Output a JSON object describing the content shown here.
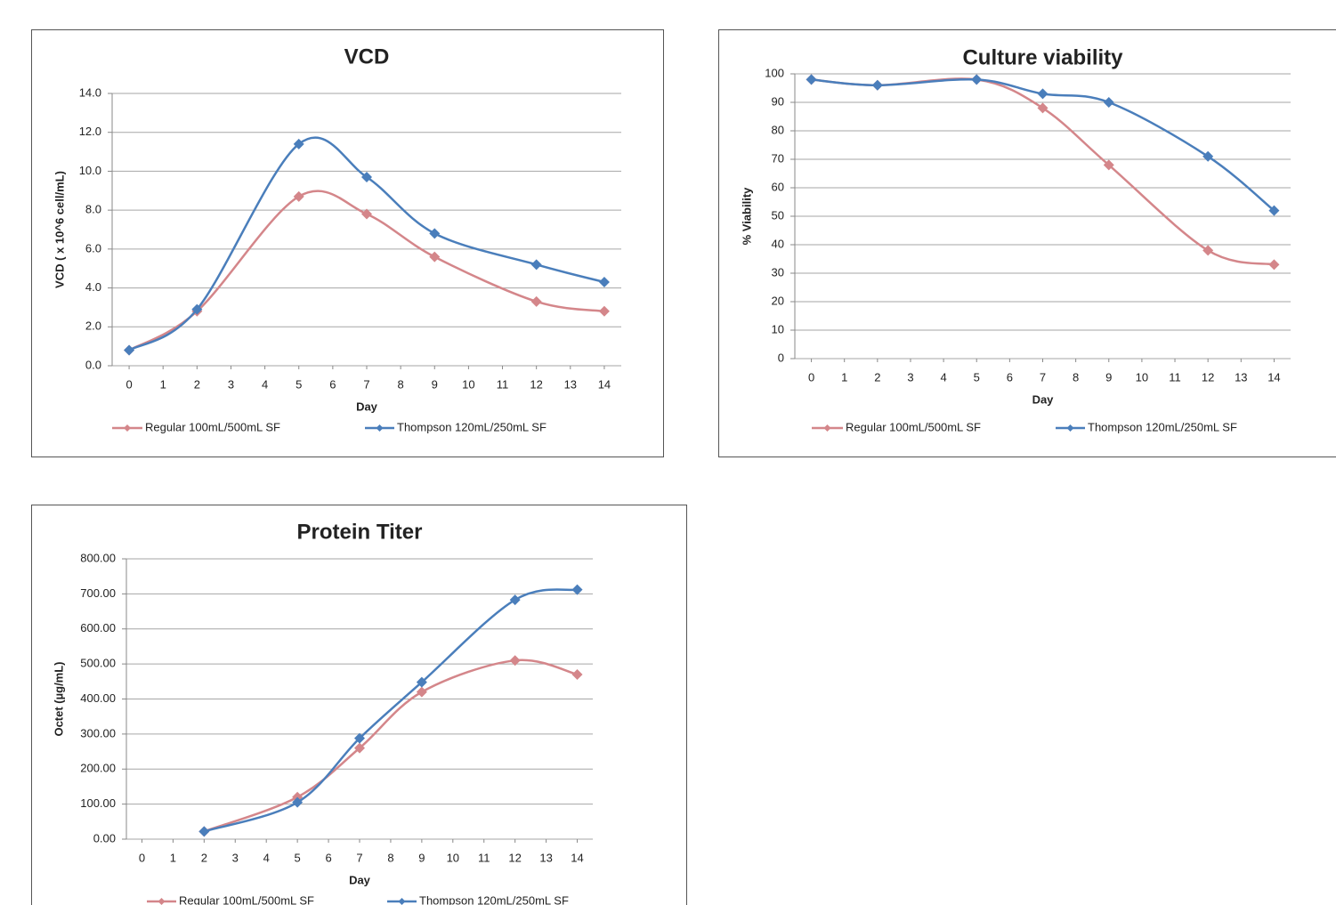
{
  "chart_data": [
    {
      "type": "line",
      "title": "VCD",
      "xlabel": "Day",
      "ylabel": "VCD ( x 10^6 cell/mL)",
      "x": [
        0,
        2,
        5,
        7,
        9,
        12,
        14
      ],
      "xlim": [
        -0.5,
        14.5
      ],
      "xticks": [
        0,
        1,
        2,
        3,
        4,
        5,
        6,
        7,
        8,
        9,
        10,
        11,
        12,
        13,
        14
      ],
      "ylim": [
        0,
        14
      ],
      "yticks": [
        {
          "value": 0,
          "label": "0.0"
        },
        {
          "value": 2,
          "label": "2.0"
        },
        {
          "value": 4,
          "label": "4.0"
        },
        {
          "value": 6,
          "label": "6.0"
        },
        {
          "value": 8,
          "label": "8.0"
        },
        {
          "value": 10,
          "label": "10.0"
        },
        {
          "value": 12,
          "label": "12.0"
        },
        {
          "value": 14,
          "label": "14.0"
        }
      ],
      "grid": true,
      "legend": "bottom",
      "series": [
        {
          "name": "Regular 100mL/500mL SF",
          "color": "#d4868a",
          "values": [
            0.8,
            2.8,
            8.7,
            7.8,
            5.6,
            3.3,
            2.8
          ]
        },
        {
          "name": "Thompson  120mL/250mL SF",
          "color": "#4a7ebb",
          "values": [
            0.8,
            2.9,
            11.4,
            9.7,
            6.8,
            5.2,
            4.3
          ]
        }
      ]
    },
    {
      "type": "line",
      "title": "Culture viability",
      "xlabel": "Day",
      "ylabel": "% Viability",
      "x": [
        0,
        2,
        5,
        7,
        9,
        12,
        14
      ],
      "xlim": [
        -0.5,
        14.5
      ],
      "xticks": [
        0,
        1,
        2,
        3,
        4,
        5,
        6,
        7,
        8,
        9,
        10,
        11,
        12,
        13,
        14
      ],
      "ylim": [
        0,
        100
      ],
      "yticks": [
        0,
        10,
        20,
        30,
        40,
        50,
        60,
        70,
        80,
        90,
        100
      ],
      "grid": true,
      "legend": "bottom",
      "series": [
        {
          "name": "Regular 100mL/500mL SF",
          "color": "#d4868a",
          "values": [
            98,
            96,
            98,
            88,
            68,
            38,
            33
          ]
        },
        {
          "name": "Thompson  120mL/250mL SF",
          "color": "#4a7ebb",
          "values": [
            98,
            96,
            98,
            93,
            90,
            71,
            52
          ]
        }
      ]
    },
    {
      "type": "line",
      "title": "Protein Titer",
      "xlabel": "Day",
      "ylabel": "Octet (µg/mL)",
      "x": [
        2,
        5,
        7,
        9,
        12,
        14
      ],
      "xlim": [
        -0.5,
        14.5
      ],
      "xticks": [
        0,
        1,
        2,
        3,
        4,
        5,
        6,
        7,
        8,
        9,
        10,
        11,
        12,
        13,
        14
      ],
      "ylim": [
        0,
        800
      ],
      "yticks": [
        {
          "value": 0,
          "label": "0.00"
        },
        {
          "value": 100,
          "label": "100.00"
        },
        {
          "value": 200,
          "label": "200.00"
        },
        {
          "value": 300,
          "label": "300.00"
        },
        {
          "value": 400,
          "label": "400.00"
        },
        {
          "value": 500,
          "label": "500.00"
        },
        {
          "value": 600,
          "label": "600.00"
        },
        {
          "value": 700,
          "label": "700.00"
        },
        {
          "value": 800,
          "label": "800.00"
        }
      ],
      "grid": true,
      "legend": "bottom",
      "series": [
        {
          "name": "Regular 100mL/500mL SF",
          "color": "#d4868a",
          "values": [
            22,
            120,
            260,
            420,
            510,
            470
          ]
        },
        {
          "name": "Thompson  120mL/250mL SF",
          "color": "#4a7ebb",
          "values": [
            22,
            105,
            288,
            448,
            683,
            712
          ]
        }
      ]
    }
  ]
}
